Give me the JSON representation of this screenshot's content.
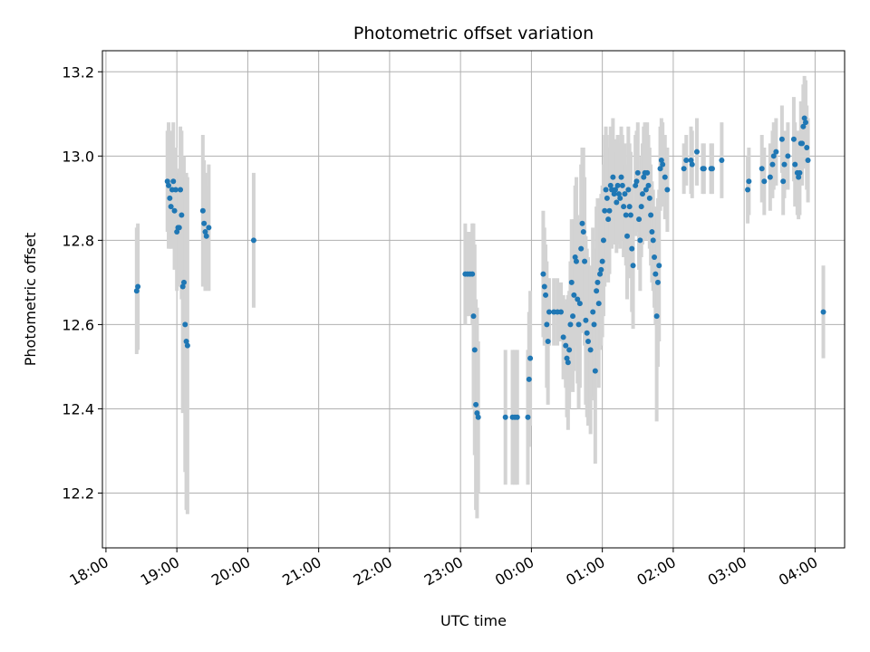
{
  "chart_data": {
    "type": "scatter",
    "title": "Photometric offset variation",
    "xlabel": "UTC time",
    "ylabel": "Photometric offset",
    "x_ticks": [
      "18:00",
      "19:00",
      "20:00",
      "21:00",
      "22:00",
      "23:00",
      "00:00",
      "01:00",
      "02:00",
      "03:00",
      "04:00"
    ],
    "xlim": [
      "17:57",
      "04:25"
    ],
    "ylim": [
      12.07,
      13.25
    ],
    "y_ticks": [
      12.2,
      12.4,
      12.6,
      12.8,
      13.0,
      13.2
    ],
    "grid": true,
    "series": [
      {
        "color": "#1f77b4",
        "errorbar_color": "#d3d3d3",
        "points": [
          [
            "18:26",
            12.68,
            0.15
          ],
          [
            "18:27",
            12.69,
            0.15
          ],
          [
            "18:52",
            12.94,
            0.12
          ],
          [
            "18:53",
            12.93,
            0.15
          ],
          [
            "18:54",
            12.9,
            0.12
          ],
          [
            "18:55",
            12.88,
            0.1
          ],
          [
            "18:56",
            12.92,
            0.14
          ],
          [
            "18:57",
            12.94,
            0.14
          ],
          [
            "18:58",
            12.87,
            0.14
          ],
          [
            "18:59",
            12.92,
            0.1
          ],
          [
            "19:00",
            12.82,
            0.14
          ],
          [
            "19:01",
            12.83,
            0.1
          ],
          [
            "19:02",
            12.83,
            0.14
          ],
          [
            "19:03",
            12.92,
            0.15
          ],
          [
            "19:04",
            12.86,
            0.2
          ],
          [
            "19:05",
            12.69,
            0.3
          ],
          [
            "19:06",
            12.7,
            0.3
          ],
          [
            "19:07",
            12.6,
            0.35
          ],
          [
            "19:08",
            12.56,
            0.4
          ],
          [
            "19:09",
            12.55,
            0.4
          ],
          [
            "19:22",
            12.87,
            0.18
          ],
          [
            "19:23",
            12.84,
            0.15
          ],
          [
            "19:24",
            12.82,
            0.14
          ],
          [
            "19:25",
            12.81,
            0.12
          ],
          [
            "19:27",
            12.83,
            0.15
          ],
          [
            "20:05",
            12.8,
            0.16
          ],
          [
            "23:04",
            12.72,
            0.12
          ],
          [
            "23:06",
            12.72,
            0.1
          ],
          [
            "23:08",
            12.72,
            0.1
          ],
          [
            "23:10",
            12.72,
            0.12
          ],
          [
            "23:11",
            12.62,
            0.22
          ],
          [
            "23:12",
            12.54,
            0.25
          ],
          [
            "23:13",
            12.41,
            0.25
          ],
          [
            "23:14",
            12.39,
            0.25
          ],
          [
            "23:15",
            12.38,
            0.18
          ],
          [
            "23:38",
            12.38,
            0.16
          ],
          [
            "23:44",
            12.38,
            0.16
          ],
          [
            "23:46",
            12.38,
            0.16
          ],
          [
            "23:48",
            12.38,
            0.16
          ],
          [
            "23:57",
            12.38,
            0.16
          ],
          [
            "23:58",
            12.47,
            0.16
          ],
          [
            "23:59",
            12.52,
            0.16
          ],
          [
            "00:10",
            12.72,
            0.15
          ],
          [
            "00:11",
            12.69,
            0.14
          ],
          [
            "00:12",
            12.67,
            0.12
          ],
          [
            "00:13",
            12.6,
            0.15
          ],
          [
            "00:14",
            12.56,
            0.15
          ],
          [
            "00:15",
            12.63,
            0.08
          ],
          [
            "00:19",
            12.63,
            0.08
          ],
          [
            "00:22",
            12.63,
            0.08
          ],
          [
            "00:25",
            12.63,
            0.07
          ],
          [
            "00:27",
            12.57,
            0.1
          ],
          [
            "00:29",
            12.55,
            0.1
          ],
          [
            "00:30",
            12.52,
            0.14
          ],
          [
            "00:31",
            12.51,
            0.16
          ],
          [
            "00:32",
            12.54,
            0.14
          ],
          [
            "00:33",
            12.6,
            0.15
          ],
          [
            "00:34",
            12.7,
            0.15
          ],
          [
            "00:35",
            12.62,
            0.18
          ],
          [
            "00:36",
            12.67,
            0.18
          ],
          [
            "00:37",
            12.76,
            0.17
          ],
          [
            "00:38",
            12.75,
            0.2
          ],
          [
            "00:39",
            12.66,
            0.2
          ],
          [
            "00:40",
            12.6,
            0.2
          ],
          [
            "00:41",
            12.65,
            0.2
          ],
          [
            "00:42",
            12.78,
            0.2
          ],
          [
            "00:43",
            12.84,
            0.18
          ],
          [
            "00:44",
            12.82,
            0.2
          ],
          [
            "00:45",
            12.75,
            0.2
          ],
          [
            "00:46",
            12.61,
            0.2
          ],
          [
            "00:47",
            12.58,
            0.2
          ],
          [
            "00:48",
            12.56,
            0.2
          ],
          [
            "00:50",
            12.54,
            0.2
          ],
          [
            "00:52",
            12.63,
            0.2
          ],
          [
            "00:53",
            12.6,
            0.18
          ],
          [
            "00:54",
            12.49,
            0.22
          ],
          [
            "00:55",
            12.68,
            0.2
          ],
          [
            "00:56",
            12.7,
            0.2
          ],
          [
            "00:57",
            12.65,
            0.2
          ],
          [
            "00:58",
            12.72,
            0.18
          ],
          [
            "00:59",
            12.73,
            0.18
          ],
          [
            "01:00",
            12.75,
            0.18
          ],
          [
            "01:01",
            12.8,
            0.18
          ],
          [
            "01:02",
            12.87,
            0.18
          ],
          [
            "01:03",
            12.92,
            0.15
          ],
          [
            "01:04",
            12.9,
            0.15
          ],
          [
            "01:05",
            12.85,
            0.15
          ],
          [
            "01:06",
            12.87,
            0.15
          ],
          [
            "01:07",
            12.93,
            0.14
          ],
          [
            "01:08",
            12.92,
            0.14
          ],
          [
            "01:09",
            12.95,
            0.14
          ],
          [
            "01:10",
            12.91,
            0.12
          ],
          [
            "01:11",
            12.92,
            0.12
          ],
          [
            "01:12",
            12.89,
            0.12
          ],
          [
            "01:13",
            12.93,
            0.12
          ],
          [
            "01:14",
            12.91,
            0.12
          ],
          [
            "01:15",
            12.9,
            0.12
          ],
          [
            "01:16",
            12.95,
            0.12
          ],
          [
            "01:17",
            12.93,
            0.12
          ],
          [
            "01:18",
            12.88,
            0.12
          ],
          [
            "01:19",
            12.91,
            0.12
          ],
          [
            "01:20",
            12.86,
            0.12
          ],
          [
            "01:21",
            12.81,
            0.15
          ],
          [
            "01:22",
            12.92,
            0.15
          ],
          [
            "01:23",
            12.88,
            0.15
          ],
          [
            "01:24",
            12.86,
            0.15
          ],
          [
            "01:25",
            12.78,
            0.15
          ],
          [
            "01:26",
            12.74,
            0.15
          ],
          [
            "01:28",
            12.93,
            0.12
          ],
          [
            "01:29",
            12.94,
            0.12
          ],
          [
            "01:30",
            12.96,
            0.12
          ],
          [
            "01:31",
            12.85,
            0.12
          ],
          [
            "01:32",
            12.8,
            0.12
          ],
          [
            "01:33",
            12.88,
            0.12
          ],
          [
            "01:34",
            12.91,
            0.12
          ],
          [
            "01:35",
            12.95,
            0.12
          ],
          [
            "01:36",
            12.96,
            0.12
          ],
          [
            "01:37",
            12.92,
            0.12
          ],
          [
            "01:38",
            12.96,
            0.12
          ],
          [
            "01:39",
            12.93,
            0.12
          ],
          [
            "01:40",
            12.9,
            0.12
          ],
          [
            "01:41",
            12.86,
            0.12
          ],
          [
            "01:42",
            12.82,
            0.12
          ],
          [
            "01:43",
            12.8,
            0.12
          ],
          [
            "01:44",
            12.76,
            0.12
          ],
          [
            "01:45",
            12.72,
            0.12
          ],
          [
            "01:46",
            12.62,
            0.25
          ],
          [
            "01:47",
            12.7,
            0.2
          ],
          [
            "01:48",
            12.74,
            0.18
          ],
          [
            "01:49",
            12.97,
            0.1
          ],
          [
            "01:50",
            12.99,
            0.1
          ],
          [
            "01:51",
            12.98,
            0.1
          ],
          [
            "01:53",
            12.95,
            0.1
          ],
          [
            "01:55",
            12.92,
            0.1
          ],
          [
            "02:09",
            12.97,
            0.06
          ],
          [
            "02:11",
            12.99,
            0.06
          ],
          [
            "02:15",
            12.99,
            0.08
          ],
          [
            "02:16",
            12.98,
            0.08
          ],
          [
            "02:20",
            13.01,
            0.08
          ],
          [
            "02:25",
            12.97,
            0.06
          ],
          [
            "02:26",
            12.97,
            0.06
          ],
          [
            "02:32",
            12.97,
            0.06
          ],
          [
            "02:33",
            12.97,
            0.06
          ],
          [
            "02:41",
            12.99,
            0.09
          ],
          [
            "03:03",
            12.92,
            0.08
          ],
          [
            "03:04",
            12.94,
            0.08
          ],
          [
            "03:15",
            12.97,
            0.08
          ],
          [
            "03:17",
            12.94,
            0.08
          ],
          [
            "03:22",
            12.95,
            0.08
          ],
          [
            "03:24",
            12.98,
            0.08
          ],
          [
            "03:25",
            13.0,
            0.08
          ],
          [
            "03:27",
            13.01,
            0.08
          ],
          [
            "03:32",
            13.04,
            0.08
          ],
          [
            "03:33",
            12.94,
            0.08
          ],
          [
            "03:34",
            12.98,
            0.08
          ],
          [
            "03:37",
            13.0,
            0.08
          ],
          [
            "03:42",
            13.04,
            0.1
          ],
          [
            "03:43",
            12.98,
            0.1
          ],
          [
            "03:45",
            12.96,
            0.1
          ],
          [
            "03:46",
            12.95,
            0.1
          ],
          [
            "03:47",
            12.96,
            0.1
          ],
          [
            "03:48",
            13.03,
            0.1
          ],
          [
            "03:49",
            13.03,
            0.1
          ],
          [
            "03:50",
            13.07,
            0.1
          ],
          [
            "03:51",
            13.09,
            0.1
          ],
          [
            "03:52",
            13.08,
            0.1
          ],
          [
            "03:53",
            13.02,
            0.1
          ],
          [
            "03:54",
            12.99,
            0.1
          ],
          [
            "04:07",
            12.63,
            0.11
          ]
        ]
      }
    ]
  }
}
